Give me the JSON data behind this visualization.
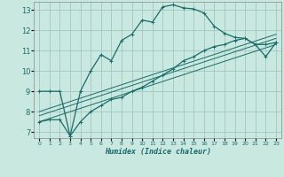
{
  "background_color": "#c8e8e0",
  "grid_color": "#a0c8c0",
  "line_color": "#1a6b6b",
  "xlabel": "Humidex (Indice chaleur)",
  "xlim": [
    -0.5,
    23.5
  ],
  "ylim": [
    6.7,
    13.4
  ],
  "yticks": [
    7,
    8,
    9,
    10,
    11,
    12,
    13
  ],
  "xticks": [
    0,
    1,
    2,
    3,
    4,
    5,
    6,
    7,
    8,
    9,
    10,
    11,
    12,
    13,
    14,
    15,
    16,
    17,
    18,
    19,
    20,
    21,
    22,
    23
  ],
  "curve1_x": [
    0,
    1,
    2,
    3,
    4,
    5,
    6,
    7,
    8,
    9,
    10,
    11,
    12,
    13,
    14,
    15,
    16,
    17,
    18,
    19,
    20,
    21,
    22,
    23
  ],
  "curve1_y": [
    9.0,
    9.0,
    9.0,
    6.8,
    9.0,
    10.0,
    10.8,
    10.5,
    11.5,
    11.8,
    12.5,
    12.4,
    13.15,
    13.25,
    13.1,
    13.05,
    12.85,
    12.2,
    11.85,
    11.65,
    11.6,
    11.3,
    10.7,
    11.4
  ],
  "curve2_x": [
    0,
    1,
    2,
    3,
    4,
    5,
    6,
    7,
    8,
    9,
    10,
    11,
    12,
    13,
    14,
    15,
    16,
    17,
    18,
    19,
    20,
    21,
    22,
    23
  ],
  "curve2_y": [
    7.5,
    7.6,
    7.6,
    6.8,
    7.5,
    8.0,
    8.3,
    8.6,
    8.7,
    9.0,
    9.2,
    9.5,
    9.8,
    10.1,
    10.5,
    10.7,
    11.0,
    11.2,
    11.3,
    11.5,
    11.6,
    11.3,
    11.3,
    11.4
  ],
  "line1_x": [
    0,
    23
  ],
  "line1_y": [
    7.5,
    11.3
  ],
  "line2_x": [
    0,
    23
  ],
  "line2_y": [
    7.8,
    11.6
  ],
  "line3_x": [
    0,
    23
  ],
  "line3_y": [
    8.0,
    11.8
  ]
}
